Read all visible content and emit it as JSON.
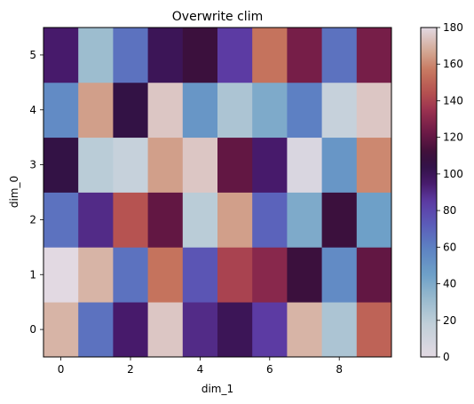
{
  "chart_data": {
    "type": "heatmap",
    "title": "Overwrite clim",
    "xlabel": "dim_1",
    "ylabel": "dim_0",
    "x_ticks": [
      0,
      2,
      4,
      6,
      8
    ],
    "y_ticks": [
      0,
      1,
      2,
      3,
      4,
      5
    ],
    "x_values": [
      0,
      1,
      2,
      3,
      4,
      5,
      6,
      7,
      8,
      9
    ],
    "y_values": [
      0,
      1,
      2,
      3,
      4,
      5
    ],
    "xlim": [
      -0.5,
      9.5
    ],
    "ylim": [
      -0.5,
      5.5
    ],
    "colormap": "twilight",
    "clim": [
      0,
      180
    ],
    "colorbar_ticks": [
      0,
      20,
      40,
      60,
      80,
      100,
      120,
      140,
      160,
      180
    ],
    "grid": false,
    "z": [
      [
        170,
        65,
        95,
        175,
        90,
        100,
        85,
        170,
        25,
        150
      ],
      [
        180,
        170,
        65,
        155,
        75,
        140,
        130,
        110,
        55,
        120
      ],
      [
        65,
        90,
        145,
        120,
        20,
        165,
        70,
        40,
        110,
        45
      ],
      [
        105,
        20,
        15,
        165,
        175,
        120,
        95,
        5,
        50,
        160
      ],
      [
        55,
        165,
        105,
        175,
        50,
        25,
        40,
        60,
        15,
        175
      ],
      [
        95,
        30,
        65,
        100,
        110,
        85,
        155,
        125,
        65,
        125
      ]
    ]
  }
}
